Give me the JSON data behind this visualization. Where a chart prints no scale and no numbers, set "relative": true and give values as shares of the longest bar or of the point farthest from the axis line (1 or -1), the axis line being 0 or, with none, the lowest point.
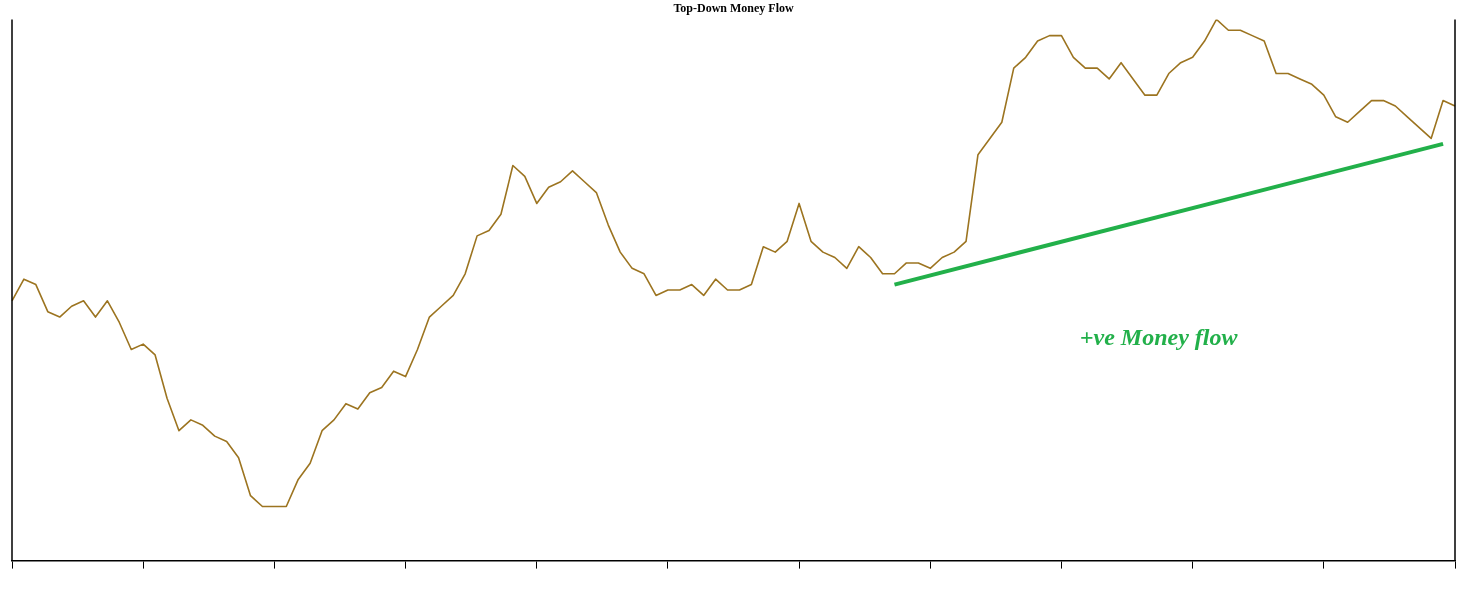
{
  "chart_data": {
    "type": "line",
    "title": "Top-Down Money Flow",
    "relative": true,
    "legend": false,
    "grid": false,
    "marker": "none",
    "line_style": "solid",
    "categories": [
      null,
      null,
      null,
      null,
      null,
      null,
      null,
      null,
      null,
      null,
      null,
      null,
      null,
      null,
      null,
      null,
      null,
      null,
      null,
      null,
      null,
      null,
      null,
      null,
      null,
      null,
      null,
      null,
      null,
      null,
      null,
      null,
      null,
      null,
      null,
      null,
      null,
      null,
      null,
      null,
      null,
      null,
      null,
      null,
      null,
      null,
      null,
      null,
      null,
      null,
      null,
      null,
      null,
      null,
      null,
      null,
      null,
      null,
      null,
      null,
      null,
      null,
      null,
      null,
      null,
      null,
      null,
      null,
      null,
      null,
      null,
      null,
      null,
      null,
      null,
      null,
      null,
      null,
      null,
      null,
      null,
      null,
      null,
      null,
      null,
      null,
      null,
      null,
      null,
      null,
      null,
      null,
      null,
      null,
      null,
      null,
      null,
      null,
      null,
      null,
      null,
      null,
      null,
      null,
      null,
      null,
      null,
      null,
      null,
      null,
      null,
      null,
      null,
      null,
      null,
      null,
      null,
      null,
      null,
      null,
      null,
      null
    ],
    "series": [
      {
        "color": "#9c7420",
        "values": [
          0.48,
          0.52,
          0.51,
          0.46,
          0.45,
          0.47,
          0.48,
          0.45,
          0.48,
          0.44,
          0.39,
          0.4,
          0.38,
          0.3,
          0.24,
          0.26,
          0.25,
          0.23,
          0.22,
          0.19,
          0.12,
          0.1,
          0.1,
          0.1,
          0.15,
          0.18,
          0.24,
          0.26,
          0.29,
          0.28,
          0.31,
          0.32,
          0.35,
          0.34,
          0.39,
          0.45,
          0.47,
          0.49,
          0.53,
          0.6,
          0.61,
          0.64,
          0.73,
          0.71,
          0.66,
          0.69,
          0.7,
          0.72,
          0.7,
          0.68,
          0.62,
          0.57,
          0.54,
          0.53,
          0.49,
          0.5,
          0.5,
          0.51,
          0.49,
          0.52,
          0.5,
          0.5,
          0.51,
          0.58,
          0.57,
          0.59,
          0.66,
          0.59,
          0.57,
          0.56,
          0.54,
          0.58,
          0.56,
          0.53,
          0.53,
          0.55,
          0.55,
          0.54,
          0.56,
          0.57,
          0.59,
          0.75,
          0.78,
          0.81,
          0.91,
          0.93,
          0.96,
          0.97,
          0.97,
          0.93,
          0.91,
          0.91,
          0.89,
          0.92,
          0.89,
          0.86,
          0.86,
          0.9,
          0.92,
          0.93,
          0.96,
          1.0,
          0.98,
          0.98,
          0.97,
          0.96,
          0.9,
          0.9,
          0.89,
          0.88,
          0.86,
          0.82,
          0.81,
          0.83,
          0.85,
          0.85,
          0.84,
          0.82,
          0.8,
          0.78,
          0.85,
          0.84
        ]
      },
      {
        "type": "line",
        "color": "#22b04a",
        "values": [
          null,
          null,
          null,
          null,
          null,
          null,
          null,
          null,
          null,
          null,
          null,
          null,
          null,
          null,
          null,
          null,
          null,
          null,
          null,
          null,
          null,
          null,
          null,
          null,
          null,
          null,
          null,
          null,
          null,
          null,
          null,
          null,
          null,
          null,
          null,
          null,
          null,
          null,
          null,
          null,
          null,
          null,
          null,
          null,
          null,
          null,
          null,
          null,
          null,
          null,
          null,
          null,
          null,
          null,
          null,
          null,
          null,
          null,
          null,
          null,
          null,
          null,
          null,
          null,
          null,
          null,
          null,
          null,
          null,
          null,
          null,
          null,
          null,
          null,
          0.51,
          null,
          null,
          null,
          null,
          null,
          null,
          null,
          null,
          null,
          null,
          null,
          null,
          null,
          null,
          null,
          null,
          null,
          null,
          null,
          null,
          null,
          null,
          null,
          null,
          null,
          null,
          null,
          null,
          null,
          null,
          null,
          null,
          null,
          null,
          null,
          null,
          null,
          null,
          null,
          null,
          null,
          null,
          null,
          null,
          null,
          0.77,
          null
        ]
      }
    ],
    "annotations": [
      "+ve Money flow"
    ]
  }
}
